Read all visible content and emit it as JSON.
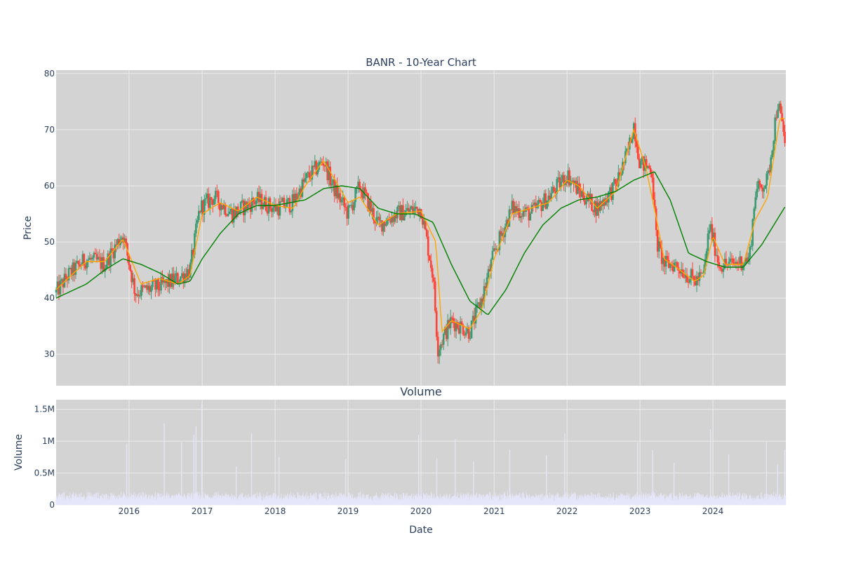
{
  "chart_data": [
    {
      "type": "candlestick",
      "title": "BANR - 10-Year Chart",
      "ylabel": "Price",
      "xlabel": "",
      "x_range": [
        "2015-01-01",
        "2024-12-31"
      ],
      "ylim": [
        24.4,
        80.6
      ],
      "y_ticks": [
        30,
        40,
        50,
        60,
        70,
        80
      ],
      "x_tick_labels": [
        "2016",
        "2017",
        "2018",
        "2019",
        "2020",
        "2021",
        "2022",
        "2023",
        "2024"
      ],
      "x_tick_dates": [
        "2016-01-01",
        "2017-01-01",
        "2018-01-01",
        "2019-01-01",
        "2020-01-01",
        "2021-01-01",
        "2022-01-01",
        "2023-01-01",
        "2024-01-01"
      ],
      "grid": true,
      "legend": "none",
      "increasing_color": "#3D9970",
      "decreasing_color": "#FF4136",
      "price_path": {
        "dates": [
          "2015-01-01",
          "2015-03-01",
          "2015-06-01",
          "2015-09-01",
          "2015-12-01",
          "2016-02-01",
          "2016-06-01",
          "2016-09-01",
          "2016-11-01",
          "2016-12-20",
          "2017-03-01",
          "2017-06-01",
          "2017-10-01",
          "2018-01-01",
          "2018-04-01",
          "2018-06-01",
          "2018-09-01",
          "2018-10-15",
          "2019-01-01",
          "2019-03-01",
          "2019-06-01",
          "2019-09-01",
          "2020-01-01",
          "2020-03-01",
          "2020-03-25",
          "2020-06-01",
          "2020-09-01",
          "2020-11-01",
          "2021-01-01",
          "2021-04-01",
          "2021-07-01",
          "2021-10-01",
          "2022-01-01",
          "2022-03-01",
          "2022-06-01",
          "2022-09-01",
          "2022-11-01",
          "2022-12-01",
          "2023-01-01",
          "2023-03-01",
          "2023-03-25",
          "2023-05-01",
          "2023-07-01",
          "2023-10-01",
          "2023-11-15",
          "2023-12-15",
          "2024-02-01",
          "2024-04-01",
          "2024-07-01",
          "2024-08-01",
          "2024-10-01",
          "2024-11-20",
          "2024-12-31"
        ],
        "values": [
          41,
          44,
          47,
          46,
          51.5,
          41,
          42,
          43.5,
          45,
          56,
          58,
          55,
          57.5,
          56,
          57,
          61,
          64.5,
          60,
          55,
          60,
          53,
          55,
          56,
          44,
          31,
          36,
          34,
          40,
          48,
          56,
          55,
          58,
          62,
          59,
          56,
          60,
          66,
          71,
          64,
          63,
          50,
          46,
          46,
          43,
          44,
          53,
          46,
          46,
          47,
          59,
          61,
          75,
          67
        ]
      },
      "moving_averages": [
        {
          "color": "#FFA500",
          "dates": [
            "2015-01-01",
            "2015-03-01",
            "2015-06-01",
            "2015-09-01",
            "2015-12-01",
            "2016-03-01",
            "2016-06-01",
            "2016-09-01",
            "2016-11-01",
            "2017-01-01",
            "2017-04-01",
            "2017-07-01",
            "2017-10-01",
            "2018-01-01",
            "2018-04-01",
            "2018-06-01",
            "2018-09-01",
            "2019-01-01",
            "2019-03-01",
            "2019-06-01",
            "2019-09-01",
            "2020-01-01",
            "2020-03-15",
            "2020-04-15",
            "2020-06-01",
            "2020-09-01",
            "2020-11-01",
            "2021-01-01",
            "2021-04-01",
            "2021-07-01",
            "2021-10-01",
            "2022-01-01",
            "2022-03-01",
            "2022-06-01",
            "2022-09-01",
            "2022-12-01",
            "2023-02-01",
            "2023-03-25",
            "2023-05-01",
            "2023-07-01",
            "2023-10-01",
            "2023-11-15",
            "2024-01-01",
            "2024-03-01",
            "2024-06-01",
            "2024-08-01",
            "2024-10-01",
            "2024-12-01",
            "2024-12-31"
          ],
          "values": [
            41.5,
            43.5,
            46.5,
            46.5,
            50.5,
            42.5,
            43.5,
            42.5,
            44,
            55,
            57,
            55.5,
            58,
            56.5,
            56,
            60,
            64.5,
            57,
            58,
            53,
            55,
            55.5,
            50,
            34,
            36,
            34.5,
            38,
            47,
            55,
            56,
            57,
            61,
            60,
            56,
            59,
            70,
            63,
            54,
            47,
            45.5,
            43,
            44,
            51,
            46,
            46,
            54,
            58,
            72,
            72
          ]
        },
        {
          "color": "#008000",
          "dates": [
            "2015-01-01",
            "2015-06-01",
            "2015-09-01",
            "2015-12-01",
            "2016-03-01",
            "2016-06-01",
            "2016-09-01",
            "2016-11-01",
            "2017-01-01",
            "2017-04-01",
            "2017-07-01",
            "2017-10-01",
            "2018-01-01",
            "2018-06-01",
            "2018-09-01",
            "2018-12-01",
            "2019-03-01",
            "2019-06-01",
            "2019-09-01",
            "2019-12-01",
            "2020-03-01",
            "2020-06-01",
            "2020-09-01",
            "2020-12-01",
            "2021-03-01",
            "2021-06-01",
            "2021-09-01",
            "2021-12-01",
            "2022-03-01",
            "2022-06-01",
            "2022-09-01",
            "2022-12-01",
            "2023-03-15",
            "2023-06-01",
            "2023-09-01",
            "2023-12-01",
            "2024-03-01",
            "2024-06-01",
            "2024-09-01",
            "2024-12-31"
          ],
          "values": [
            40,
            42.5,
            45,
            47,
            46,
            44.5,
            42.5,
            43,
            47,
            51.5,
            55,
            56.5,
            56.5,
            57.5,
            59.5,
            60,
            59.5,
            56,
            55,
            55,
            53.5,
            46,
            39.5,
            37,
            41.5,
            48,
            53,
            56,
            57.5,
            58,
            59,
            61,
            62.5,
            57.5,
            48,
            46.5,
            45.5,
            45.5,
            49.5,
            56.5
          ]
        }
      ]
    },
    {
      "type": "bar",
      "title": "Volume",
      "ylabel": "Volume",
      "xlabel": "Date",
      "ylim": [
        0,
        1650000
      ],
      "y_ticks": [
        0,
        500000,
        1000000,
        1500000
      ],
      "y_tick_labels": [
        "0",
        "0.5M",
        "1M",
        "1.5M"
      ],
      "grid": true,
      "bar_color": "#e6e6fa",
      "typical_volume": [
        60000,
        220000
      ],
      "spikes": [
        {
          "date": "2015-12-20",
          "value": 960000
        },
        {
          "date": "2016-06-25",
          "value": 1280000
        },
        {
          "date": "2016-09-20",
          "value": 980000
        },
        {
          "date": "2016-11-20",
          "value": 1100000
        },
        {
          "date": "2016-12-01",
          "value": 1230000
        },
        {
          "date": "2016-12-30",
          "value": 1590000
        },
        {
          "date": "2017-06-20",
          "value": 600000
        },
        {
          "date": "2017-09-05",
          "value": 1120000
        },
        {
          "date": "2018-01-20",
          "value": 750000
        },
        {
          "date": "2018-12-20",
          "value": 720000
        },
        {
          "date": "2019-12-20",
          "value": 1100000
        },
        {
          "date": "2020-03-20",
          "value": 730000
        },
        {
          "date": "2020-06-20",
          "value": 1030000
        },
        {
          "date": "2020-09-20",
          "value": 680000
        },
        {
          "date": "2021-03-20",
          "value": 860000
        },
        {
          "date": "2021-09-20",
          "value": 780000
        },
        {
          "date": "2021-12-20",
          "value": 1120000
        },
        {
          "date": "2022-12-20",
          "value": 980000
        },
        {
          "date": "2023-03-05",
          "value": 860000
        },
        {
          "date": "2023-06-20",
          "value": 660000
        },
        {
          "date": "2023-12-20",
          "value": 1190000
        },
        {
          "date": "2024-03-20",
          "value": 790000
        },
        {
          "date": "2024-09-25",
          "value": 1000000
        },
        {
          "date": "2024-11-20",
          "value": 640000
        },
        {
          "date": "2024-12-25",
          "value": 860000
        }
      ]
    }
  ]
}
